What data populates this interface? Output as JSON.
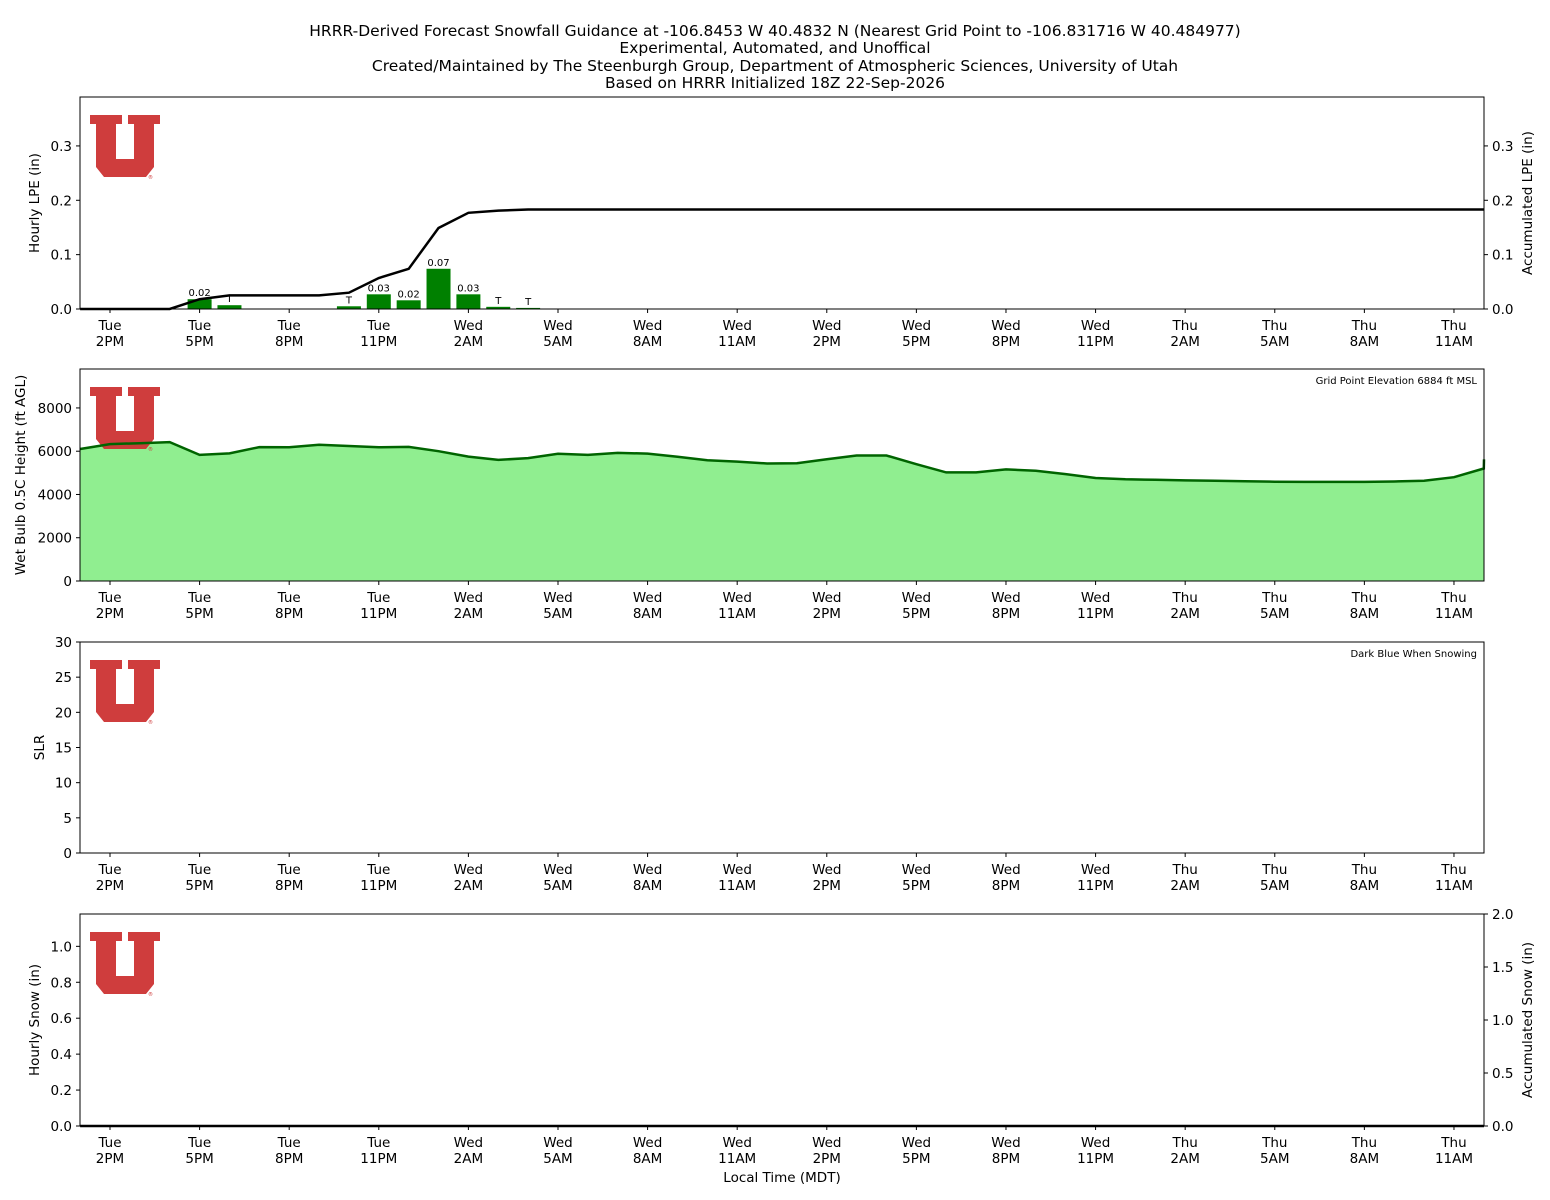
{
  "title_lines": [
    "HRRR-Derived Forecast Snowfall Guidance at -106.8453 W 40.4832 N (Nearest Grid Point to -106.831716 W 40.484977)",
    "Experimental, Automated, and Unoffical",
    "Created/Maintained by The Steenburgh Group, Department of Atmospheric Sciences, University of Utah",
    "Based on HRRR Initialized 18Z 22-Sep-2026"
  ],
  "x_axis_label": "Local Time (MDT)",
  "x_ticks": [
    {
      "day": "Tue",
      "time": "2PM"
    },
    {
      "day": "Tue",
      "time": "5PM"
    },
    {
      "day": "Tue",
      "time": "8PM"
    },
    {
      "day": "Tue",
      "time": "11PM"
    },
    {
      "day": "Wed",
      "time": "2AM"
    },
    {
      "day": "Wed",
      "time": "5AM"
    },
    {
      "day": "Wed",
      "time": "8AM"
    },
    {
      "day": "Wed",
      "time": "11AM"
    },
    {
      "day": "Wed",
      "time": "2PM"
    },
    {
      "day": "Wed",
      "time": "5PM"
    },
    {
      "day": "Wed",
      "time": "8PM"
    },
    {
      "day": "Wed",
      "time": "11PM"
    },
    {
      "day": "Thu",
      "time": "2AM"
    },
    {
      "day": "Thu",
      "time": "5AM"
    },
    {
      "day": "Thu",
      "time": "8AM"
    },
    {
      "day": "Thu",
      "time": "11AM"
    }
  ],
  "logo_mark": "University of Utah block U logo",
  "colors": {
    "lpe_bar": "#008000",
    "line": "#000000",
    "wetbulb_fill": "#90ee90",
    "wetbulb_line": "#006400",
    "logo": "#cc3333"
  },
  "chart_data": [
    {
      "type": "bar",
      "panel": "hourly_lpe",
      "ylabel": "Hourly LPE (in)",
      "y2label": "Accumulated LPE (in)",
      "ylim": [
        0,
        0.39
      ],
      "yticks": [
        "0.0",
        "0.1",
        "0.2",
        "0.3"
      ],
      "y2ticks": [
        "0.0",
        "0.1",
        "0.2",
        "0.3"
      ],
      "x_hours_from_tue_2pm": [
        -1,
        0,
        1,
        2,
        3,
        4,
        5,
        6,
        7,
        8,
        9,
        10,
        11,
        12,
        13,
        14,
        15,
        16,
        17,
        18,
        19,
        20,
        21,
        22,
        23,
        24,
        25,
        26,
        27,
        28,
        29,
        30,
        31,
        32,
        33,
        34,
        35,
        36,
        37,
        38,
        39,
        40,
        41,
        42,
        43,
        44,
        45,
        46,
        47
      ],
      "hourly_lpe_values": [
        0,
        0,
        0,
        0,
        0.018,
        0.007,
        0,
        0,
        0,
        0.005,
        0.027,
        0.016,
        0.074,
        0.027,
        0.004,
        0.002,
        0,
        0,
        0,
        0,
        0,
        0,
        0,
        0,
        0,
        0,
        0,
        0,
        0,
        0,
        0,
        0,
        0,
        0,
        0,
        0,
        0,
        0,
        0,
        0,
        0,
        0,
        0,
        0,
        0,
        0,
        0,
        0,
        0
      ],
      "bar_labels": [
        "",
        "",
        "",
        "",
        "0.02",
        "T",
        "",
        "",
        "",
        "T",
        "0.03",
        "0.02",
        "0.07",
        "0.03",
        "T",
        "T",
        "",
        "",
        "",
        "",
        "",
        "",
        "",
        "",
        "",
        "",
        "",
        "",
        "",
        "",
        "",
        "",
        "",
        "",
        "",
        "",
        "",
        "",
        "",
        "",
        "",
        "",
        "",
        "",
        "",
        "",
        "",
        "",
        ""
      ],
      "accumulated_lpe_values": [
        0,
        0,
        0,
        0,
        0.018,
        0.025,
        0.025,
        0.025,
        0.025,
        0.03,
        0.057,
        0.074,
        0.149,
        0.177,
        0.181,
        0.183,
        0.183,
        0.183,
        0.183,
        0.183,
        0.183,
        0.183,
        0.183,
        0.183,
        0.183,
        0.183,
        0.183,
        0.183,
        0.183,
        0.183,
        0.183,
        0.183,
        0.183,
        0.183,
        0.183,
        0.183,
        0.183,
        0.183,
        0.183,
        0.183,
        0.183,
        0.183,
        0.183,
        0.183,
        0.183,
        0.183,
        0.183,
        0.183,
        0.183
      ]
    },
    {
      "type": "area",
      "panel": "wet_bulb",
      "ylabel": "Wet Bulb 0.5C Height (ft AGL)",
      "annotation": "Grid Point Elevation 6884 ft MSL",
      "ylim": [
        0,
        9800
      ],
      "yticks": [
        "0",
        "2000",
        "4000",
        "6000",
        "8000"
      ],
      "x_hours_from_tue_2pm": [
        -1,
        0,
        1,
        2,
        3,
        4,
        5,
        6,
        7,
        8,
        9,
        10,
        11,
        12,
        13,
        14,
        15,
        16,
        17,
        18,
        19,
        20,
        21,
        22,
        23,
        24,
        25,
        26,
        27,
        28,
        29,
        30,
        31,
        32,
        33,
        34,
        35,
        36,
        37,
        38,
        39,
        40,
        41,
        42,
        43,
        44,
        45,
        46,
        47
      ],
      "values": [
        6100,
        6330,
        6370,
        6420,
        5830,
        5900,
        6190,
        6180,
        6300,
        6240,
        6180,
        6200,
        6000,
        5750,
        5600,
        5680,
        5880,
        5830,
        5920,
        5890,
        5740,
        5580,
        5520,
        5430,
        5440,
        5630,
        5800,
        5800,
        5400,
        5020,
        5020,
        5160,
        5100,
        4940,
        4760,
        4700,
        4680,
        4650,
        4630,
        4610,
        4590,
        4580,
        4580,
        4580,
        4600,
        4630,
        4800,
        5200,
        5620
      ]
    },
    {
      "type": "line",
      "panel": "slr",
      "ylabel": "SLR",
      "annotation": "Dark Blue When Snowing",
      "ylim": [
        0,
        30
      ],
      "yticks": [
        "0",
        "5",
        "10",
        "15",
        "20",
        "25",
        "30"
      ],
      "values": []
    },
    {
      "type": "bar",
      "panel": "hourly_snow",
      "ylabel": "Hourly Snow (in)",
      "y2label": "Accumulated Snow (in)",
      "ylim": [
        0,
        1.18
      ],
      "y2lim": [
        0,
        2.0
      ],
      "yticks": [
        "0.0",
        "0.2",
        "0.4",
        "0.6",
        "0.8",
        "1.0"
      ],
      "y2ticks": [
        "0.0",
        "0.5",
        "1.0",
        "1.5",
        "2.0"
      ],
      "hourly_snow_values": [],
      "accumulated_snow_values": [
        0,
        0,
        0,
        0,
        0,
        0,
        0,
        0,
        0,
        0,
        0,
        0,
        0,
        0,
        0,
        0,
        0,
        0,
        0,
        0,
        0,
        0,
        0,
        0,
        0,
        0,
        0,
        0,
        0,
        0,
        0,
        0,
        0,
        0,
        0,
        0,
        0,
        0,
        0,
        0,
        0,
        0,
        0,
        0,
        0,
        0,
        0,
        0,
        0
      ]
    }
  ]
}
